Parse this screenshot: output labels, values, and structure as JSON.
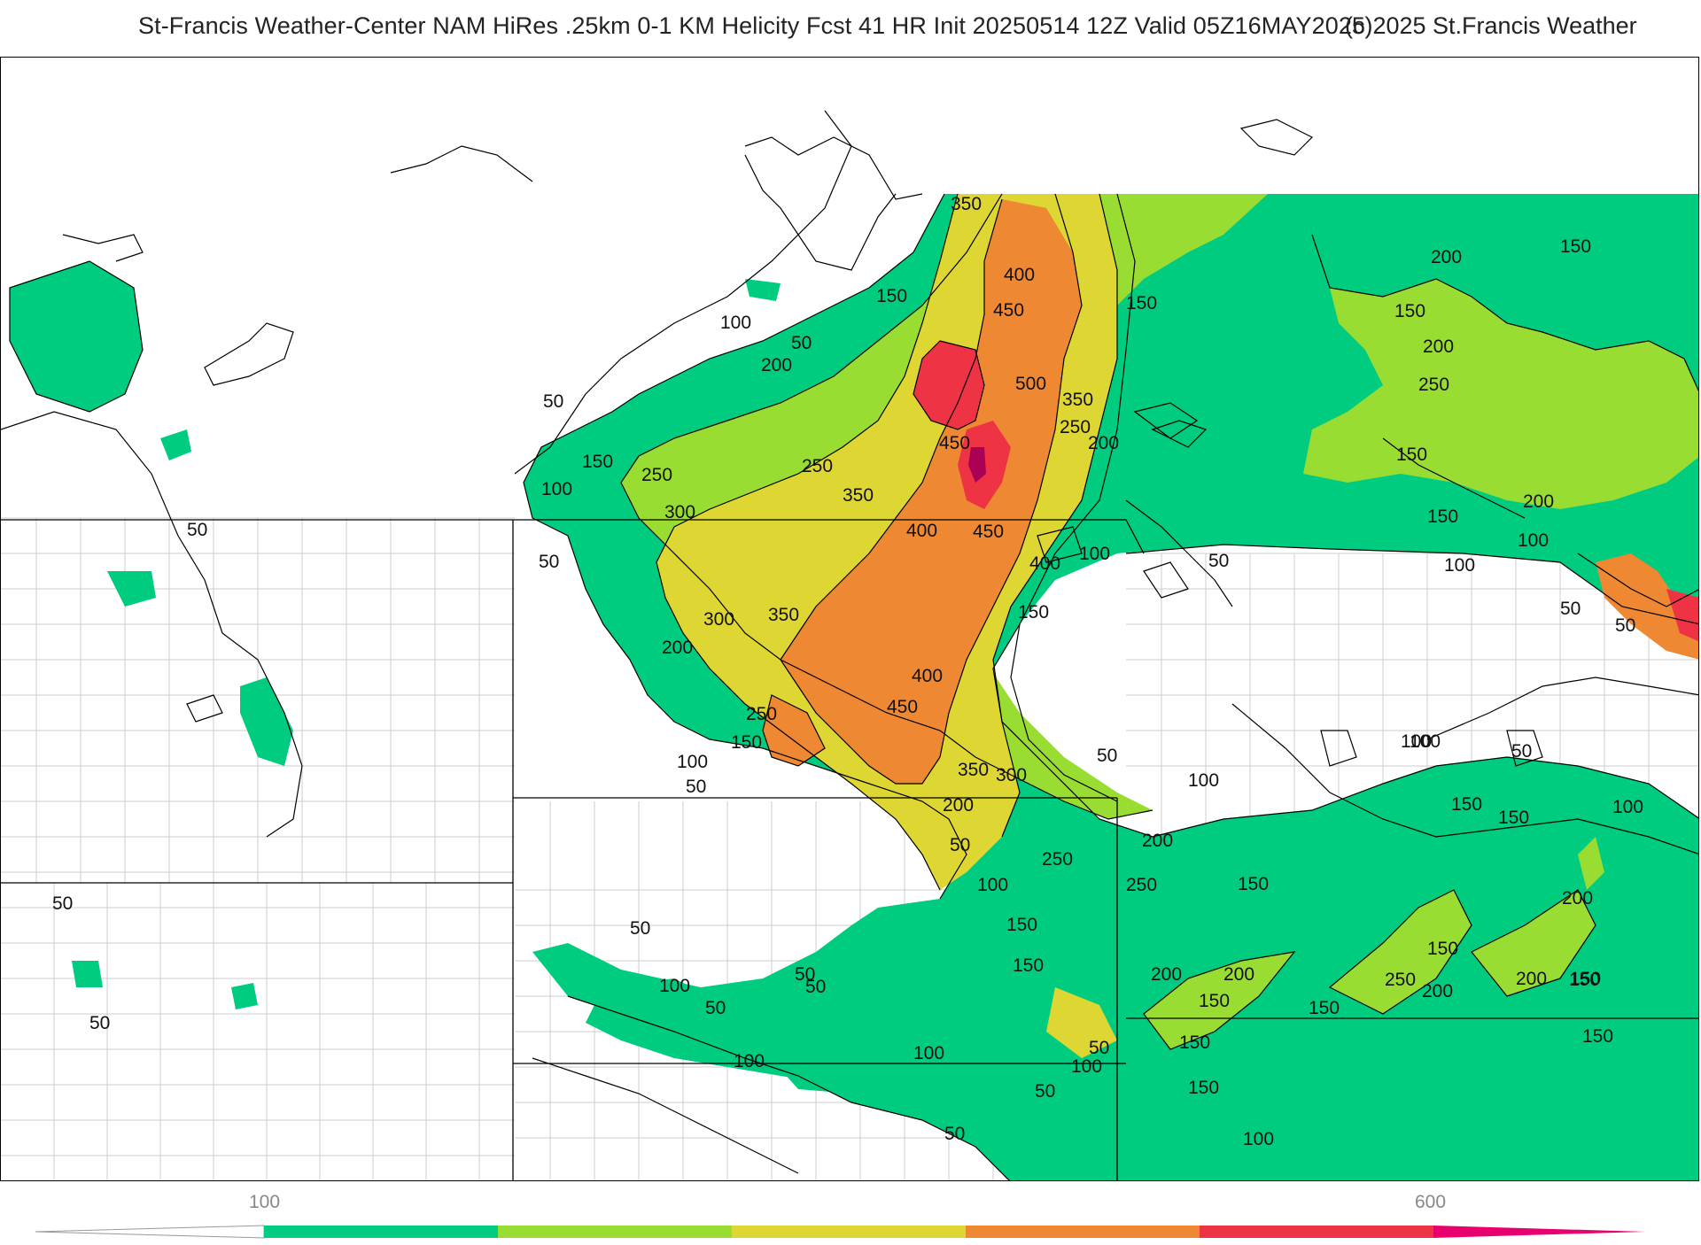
{
  "title": {
    "main": "St-Francis Weather-Center NAM HiRes .25km 0-1 KM Helicity Fcst 41 HR Init 20250514 12Z  Valid 05Z16MAY2025",
    "copyright": "(c)2025 St.Francis Weather"
  },
  "colorbar": {
    "tick_labels": [
      "100",
      "600"
    ],
    "bins": [
      {
        "from": 100,
        "to": 200,
        "color": "#00cc80"
      },
      {
        "from": 200,
        "to": 300,
        "color": "#99dd33"
      },
      {
        "from": 300,
        "to": 400,
        "color": "#ddd633"
      },
      {
        "from": 400,
        "to": 500,
        "color": "#ee8833"
      },
      {
        "from": 500,
        "to": 600,
        "color": "#ee3344"
      },
      {
        "from": 600,
        "to": 700,
        "color": "#e8006e"
      }
    ],
    "low_extend_color": "#ffffff"
  },
  "contour_labels": [
    "50",
    "100",
    "150",
    "200",
    "250",
    "300",
    "350",
    "400",
    "450",
    "500"
  ],
  "map_labels": [
    {
      "id": "l1",
      "text": "350"
    },
    {
      "id": "l2",
      "text": "400"
    },
    {
      "id": "l3",
      "text": "450"
    },
    {
      "id": "l4",
      "text": "500"
    },
    {
      "id": "l5",
      "text": "350"
    },
    {
      "id": "l6",
      "text": "250"
    },
    {
      "id": "l7",
      "text": "200"
    },
    {
      "id": "l8",
      "text": "450"
    },
    {
      "id": "l9",
      "text": "150"
    },
    {
      "id": "l10",
      "text": "150"
    },
    {
      "id": "l11",
      "text": "100"
    },
    {
      "id": "l12",
      "text": "50"
    },
    {
      "id": "l13",
      "text": "200"
    },
    {
      "id": "l14",
      "text": "50"
    },
    {
      "id": "l15",
      "text": "150"
    },
    {
      "id": "l16",
      "text": "100"
    },
    {
      "id": "l17",
      "text": "250"
    },
    {
      "id": "l18",
      "text": "250"
    },
    {
      "id": "l19",
      "text": "350"
    },
    {
      "id": "l20",
      "text": "300"
    },
    {
      "id": "l21",
      "text": "400"
    },
    {
      "id": "l22",
      "text": "450"
    },
    {
      "id": "l23",
      "text": "400"
    },
    {
      "id": "l24",
      "text": "150"
    },
    {
      "id": "l25",
      "text": "100"
    },
    {
      "id": "l26",
      "text": "50"
    },
    {
      "id": "l27",
      "text": "50"
    },
    {
      "id": "l28",
      "text": "300"
    },
    {
      "id": "l29",
      "text": "350"
    },
    {
      "id": "l30",
      "text": "200"
    },
    {
      "id": "l31",
      "text": "250"
    },
    {
      "id": "l32",
      "text": "400"
    },
    {
      "id": "l33",
      "text": "450"
    },
    {
      "id": "l34",
      "text": "150"
    },
    {
      "id": "l35",
      "text": "100"
    },
    {
      "id": "l36",
      "text": "50"
    },
    {
      "id": "l37",
      "text": "350"
    },
    {
      "id": "l38",
      "text": "300"
    },
    {
      "id": "l39",
      "text": "200"
    },
    {
      "id": "l40",
      "text": "50"
    },
    {
      "id": "l41",
      "text": "100"
    },
    {
      "id": "l42",
      "text": "250"
    },
    {
      "id": "l43",
      "text": "200"
    },
    {
      "id": "l44",
      "text": "250"
    },
    {
      "id": "l45",
      "text": "150"
    },
    {
      "id": "l46",
      "text": "150"
    },
    {
      "id": "l47",
      "text": "150"
    },
    {
      "id": "l48",
      "text": "50"
    },
    {
      "id": "l49",
      "text": "100"
    },
    {
      "id": "l50",
      "text": "200"
    },
    {
      "id": "l51",
      "text": "150"
    },
    {
      "id": "l52",
      "text": "150"
    },
    {
      "id": "l53",
      "text": "50"
    },
    {
      "id": "l54",
      "text": "100"
    },
    {
      "id": "l55",
      "text": "150"
    },
    {
      "id": "l56",
      "text": "100"
    },
    {
      "id": "l57",
      "text": "50"
    },
    {
      "id": "l58",
      "text": "50"
    },
    {
      "id": "l59",
      "text": "100"
    },
    {
      "id": "l60",
      "text": "50"
    },
    {
      "id": "l61",
      "text": "100"
    },
    {
      "id": "l62",
      "text": "50"
    },
    {
      "id": "l63",
      "text": "50"
    },
    {
      "id": "l64",
      "text": "50"
    },
    {
      "id": "l65",
      "text": "50"
    },
    {
      "id": "l66",
      "text": "50"
    },
    {
      "id": "l67",
      "text": "100"
    },
    {
      "id": "l68",
      "text": "200"
    },
    {
      "id": "l69",
      "text": "250"
    },
    {
      "id": "l70",
      "text": "150"
    },
    {
      "id": "l71",
      "text": "200"
    },
    {
      "id": "l72",
      "text": "250"
    },
    {
      "id": "l73",
      "text": "200"
    },
    {
      "id": "l74",
      "text": "150"
    },
    {
      "id": "l75",
      "text": "150"
    },
    {
      "id": "l76",
      "text": "200"
    },
    {
      "id": "l77",
      "text": "100"
    },
    {
      "id": "l78",
      "text": "50"
    },
    {
      "id": "l79",
      "text": "200"
    },
    {
      "id": "l80",
      "text": "50"
    },
    {
      "id": "l81",
      "text": "150"
    },
    {
      "id": "l82",
      "text": "100"
    },
    {
      "id": "l83",
      "text": "150"
    },
    {
      "id": "l84",
      "text": "50"
    },
    {
      "id": "l85",
      "text": "100"
    },
    {
      "id": "l86",
      "text": "200"
    },
    {
      "id": "l87",
      "text": "150"
    },
    {
      "id": "l88",
      "text": "100"
    },
    {
      "id": "l89",
      "text": "150"
    },
    {
      "id": "l90",
      "text": "200"
    },
    {
      "id": "l91",
      "text": "150"
    },
    {
      "id": "l92",
      "text": "150"
    },
    {
      "id": "l93",
      "text": "150"
    },
    {
      "id": "l94",
      "text": "150"
    },
    {
      "id": "l95",
      "text": "100"
    },
    {
      "id": "l96",
      "text": "50"
    }
  ]
}
